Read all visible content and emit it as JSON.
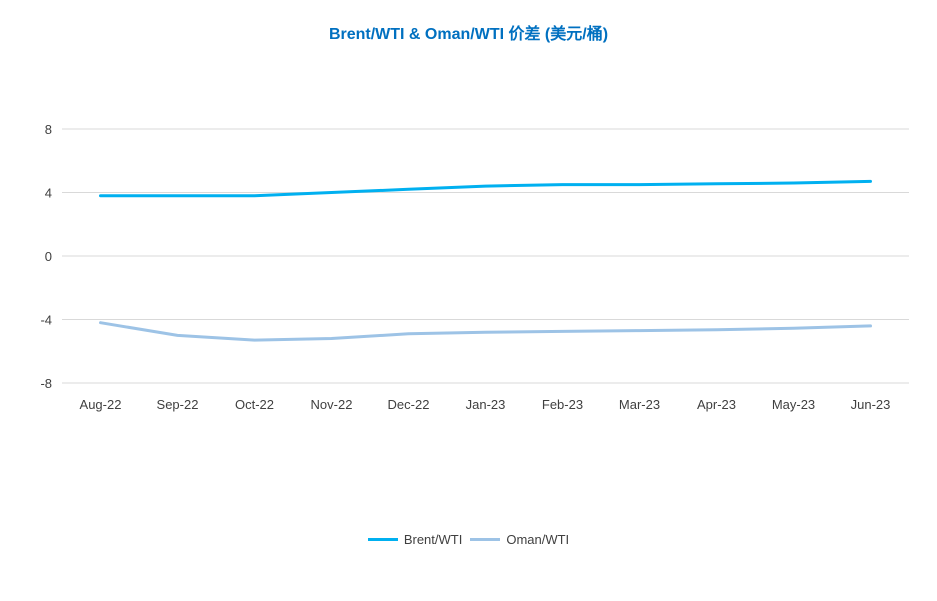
{
  "colors": {
    "title": "#0070C0",
    "brent": "#00B0F0",
    "oman": "#9DC3E6",
    "grid": "#D9D9D9"
  },
  "chart_data": {
    "type": "line",
    "title": "Brent/WTI & Oman/WTI 价差 (美元/桶)",
    "xlabel": "",
    "ylabel": "",
    "categories": [
      "Aug-22",
      "Sep-22",
      "Oct-22",
      "Nov-22",
      "Dec-22",
      "Jan-23",
      "Feb-23",
      "Mar-23",
      "Apr-23",
      "May-23",
      "Jun-23"
    ],
    "ylim": [
      -8,
      8
    ],
    "yticks": [
      "8",
      "4",
      "0",
      "-4",
      "-8"
    ],
    "grid": true,
    "legend_position": "bottom",
    "series": [
      {
        "name": "Brent/WTI",
        "values": [
          3.8,
          3.8,
          3.8,
          4.0,
          4.2,
          4.4,
          4.5,
          4.5,
          4.55,
          4.6,
          4.7
        ]
      },
      {
        "name": "Oman/WTI",
        "values": [
          -4.2,
          -5.0,
          -5.3,
          -5.2,
          -4.9,
          -4.8,
          -4.75,
          -4.7,
          -4.65,
          -4.55,
          -4.4
        ]
      }
    ]
  }
}
